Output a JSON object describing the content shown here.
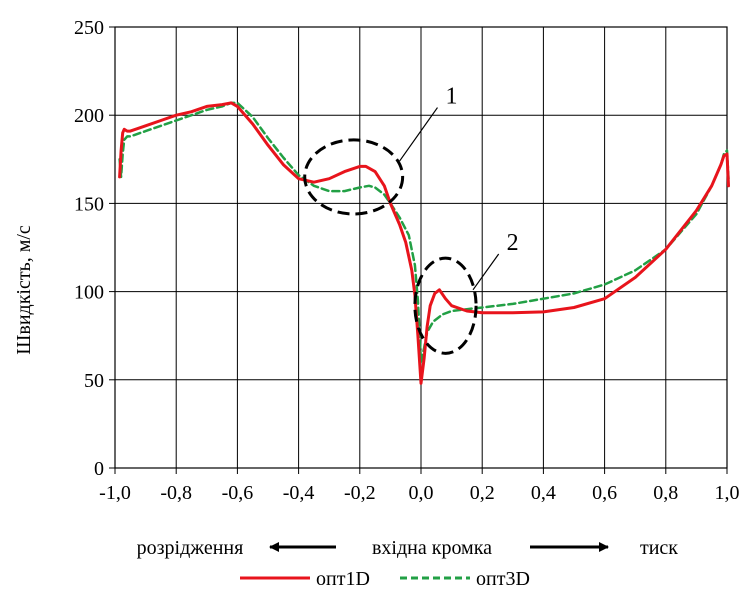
{
  "chart_data": {
    "type": "line",
    "title": "",
    "ylabel": "Швидкість, м/с",
    "xlabel": "",
    "xlim": [
      -1.0,
      1.0
    ],
    "ylim": [
      0,
      250
    ],
    "grid": true,
    "x_ticks": [
      "-1,0",
      "-0,8",
      "-0,6",
      "-0,4",
      "-0,2",
      "0,0",
      "0,2",
      "0,4",
      "0,6",
      "0,8",
      "1,0"
    ],
    "x_tick_values": [
      -1.0,
      -0.8,
      -0.6,
      -0.4,
      -0.2,
      0.0,
      0.2,
      0.4,
      0.6,
      0.8,
      1.0
    ],
    "y_ticks": [
      "0",
      "50",
      "100",
      "150",
      "200",
      "250"
    ],
    "y_tick_values": [
      0,
      50,
      100,
      150,
      200,
      250
    ],
    "direction_labels": {
      "left": "розрідження",
      "center": "вхідна кромка",
      "right": "тиск"
    },
    "legend_position": "bottom",
    "series": [
      {
        "name": "опт1D",
        "color": "#e8141c",
        "style": "solid",
        "points": [
          [
            -0.985,
            165
          ],
          [
            -0.98,
            180
          ],
          [
            -0.975,
            190
          ],
          [
            -0.97,
            192
          ],
          [
            -0.96,
            191
          ],
          [
            -0.95,
            191
          ],
          [
            -0.9,
            194
          ],
          [
            -0.85,
            197
          ],
          [
            -0.8,
            200
          ],
          [
            -0.75,
            202
          ],
          [
            -0.7,
            205
          ],
          [
            -0.65,
            206
          ],
          [
            -0.62,
            207
          ],
          [
            -0.6,
            205
          ],
          [
            -0.55,
            195
          ],
          [
            -0.5,
            183
          ],
          [
            -0.45,
            172
          ],
          [
            -0.4,
            164
          ],
          [
            -0.35,
            162
          ],
          [
            -0.3,
            164
          ],
          [
            -0.25,
            168
          ],
          [
            -0.2,
            171
          ],
          [
            -0.18,
            171
          ],
          [
            -0.15,
            168
          ],
          [
            -0.12,
            160
          ],
          [
            -0.1,
            150
          ],
          [
            -0.07,
            138
          ],
          [
            -0.05,
            128
          ],
          [
            -0.03,
            112
          ],
          [
            -0.02,
            98
          ],
          [
            -0.01,
            75
          ],
          [
            0.0,
            48
          ],
          [
            0.01,
            62
          ],
          [
            0.02,
            80
          ],
          [
            0.03,
            92
          ],
          [
            0.045,
            99
          ],
          [
            0.06,
            101
          ],
          [
            0.08,
            96
          ],
          [
            0.1,
            92
          ],
          [
            0.15,
            89
          ],
          [
            0.2,
            88
          ],
          [
            0.3,
            88
          ],
          [
            0.4,
            88.5
          ],
          [
            0.5,
            91
          ],
          [
            0.6,
            96
          ],
          [
            0.7,
            108
          ],
          [
            0.8,
            124
          ],
          [
            0.9,
            146
          ],
          [
            0.95,
            160
          ],
          [
            0.98,
            172
          ],
          [
            0.99,
            177
          ],
          [
            1.0,
            178
          ],
          [
            1.005,
            160
          ]
        ]
      },
      {
        "name": "опт3D",
        "color": "#22a045",
        "style": "dashed",
        "points": [
          [
            -0.985,
            175
          ],
          [
            -0.98,
            165
          ],
          [
            -0.975,
            178
          ],
          [
            -0.97,
            186
          ],
          [
            -0.96,
            188
          ],
          [
            -0.95,
            188
          ],
          [
            -0.9,
            191
          ],
          [
            -0.85,
            194
          ],
          [
            -0.8,
            197
          ],
          [
            -0.75,
            200
          ],
          [
            -0.7,
            203
          ],
          [
            -0.65,
            205
          ],
          [
            -0.62,
            207
          ],
          [
            -0.6,
            207
          ],
          [
            -0.55,
            199
          ],
          [
            -0.5,
            187
          ],
          [
            -0.45,
            176
          ],
          [
            -0.4,
            166
          ],
          [
            -0.35,
            160
          ],
          [
            -0.3,
            157
          ],
          [
            -0.25,
            157
          ],
          [
            -0.2,
            159
          ],
          [
            -0.17,
            160
          ],
          [
            -0.15,
            159
          ],
          [
            -0.12,
            155
          ],
          [
            -0.1,
            150
          ],
          [
            -0.07,
            142
          ],
          [
            -0.04,
            132
          ],
          [
            -0.02,
            115
          ],
          [
            -0.01,
            95
          ],
          [
            0.0,
            60
          ],
          [
            0.01,
            68
          ],
          [
            0.02,
            77
          ],
          [
            0.04,
            83
          ],
          [
            0.07,
            87
          ],
          [
            0.1,
            89
          ],
          [
            0.15,
            90
          ],
          [
            0.2,
            91
          ],
          [
            0.3,
            93
          ],
          [
            0.4,
            96
          ],
          [
            0.5,
            99
          ],
          [
            0.6,
            104
          ],
          [
            0.7,
            112
          ],
          [
            0.8,
            124
          ],
          [
            0.9,
            144
          ],
          [
            0.95,
            160
          ],
          [
            0.98,
            172
          ],
          [
            0.99,
            178
          ],
          [
            1.0,
            180
          ],
          [
            1.005,
            164
          ]
        ]
      }
    ],
    "annotations": [
      {
        "label": "1",
        "center": [
          -0.22,
          165
        ],
        "rx": 0.16,
        "ry": 21,
        "tip": [
          -0.07,
          174
        ],
        "text_at": [
          0.08,
          210
        ]
      },
      {
        "label": "2",
        "center": [
          0.08,
          92
        ],
        "rx": 0.1,
        "ry": 27,
        "tip": [
          0.17,
          101
        ],
        "text_at": [
          0.28,
          127
        ]
      }
    ]
  }
}
